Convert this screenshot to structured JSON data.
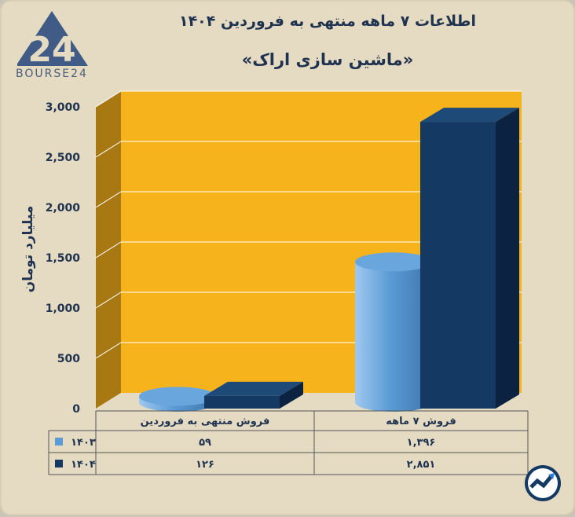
{
  "header": {
    "title": "اطلاعات ۷ ماهه منتهی به فروردین ۱۴۰۴",
    "subtitle": "«ماشین سازی اراک»",
    "logo_text": "BOURSE24",
    "logo_number": "24"
  },
  "chart_data": {
    "type": "bar",
    "ylabel": "میلیارد تومان",
    "ylim": [
      0,
      3000
    ],
    "yticks": [
      0,
      500,
      1000,
      1500,
      2000,
      2500,
      3000
    ],
    "ytick_labels": [
      "0",
      "500",
      "1,000",
      "1,500",
      "2,000",
      "2,500",
      "3,000"
    ],
    "categories": [
      "فروش ۷ ماهه",
      "فروش منتهی به فروردین"
    ],
    "series": [
      {
        "name": "۱۴۰۳",
        "values": [
          1396,
          59
        ],
        "value_labels": [
          "۱,۳۹۶",
          "۵۹"
        ],
        "color": "#5b9bd5",
        "shape": "cylinder"
      },
      {
        "name": "۱۴۰۴",
        "values": [
          2851,
          126
        ],
        "value_labels": [
          "۲,۸۵۱",
          "۱۲۶"
        ],
        "color": "#143a63",
        "shape": "box"
      }
    ],
    "grid": true,
    "legend": "table-left",
    "colors": {
      "wall": "#f7b31c",
      "side_wall": "#a87812",
      "floor": "#e5dbc2"
    }
  }
}
